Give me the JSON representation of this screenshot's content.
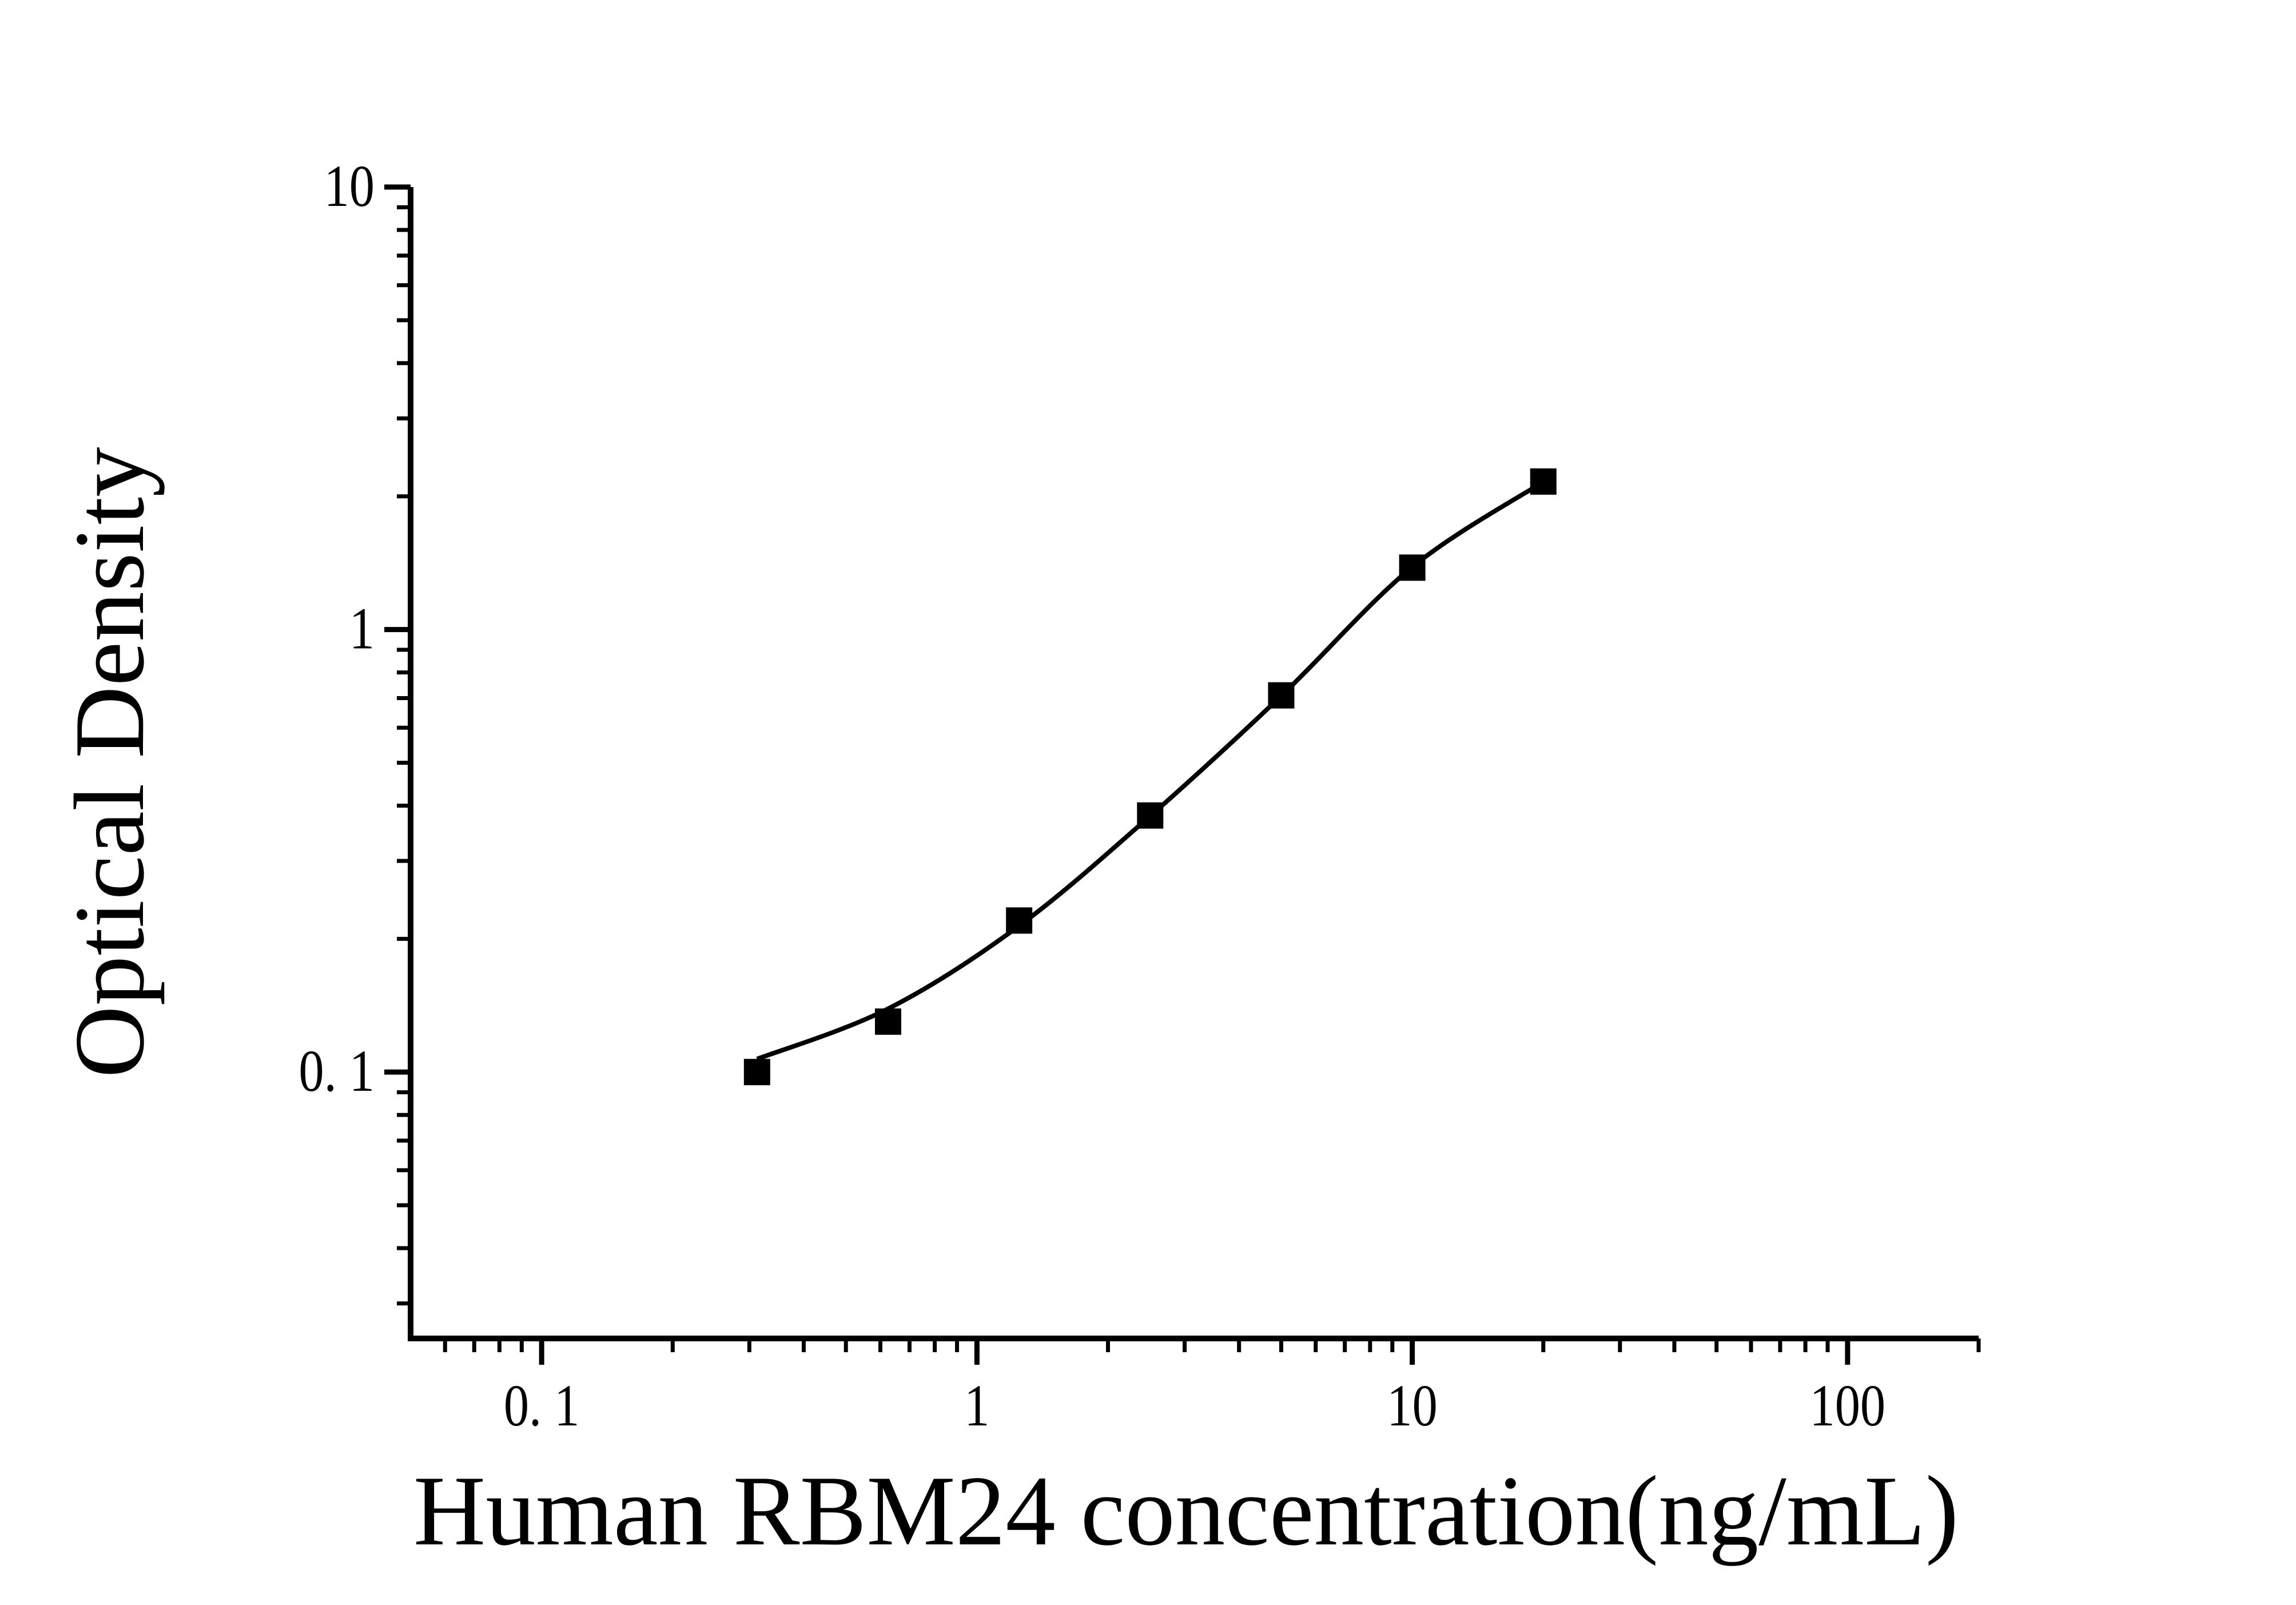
{
  "figure": {
    "background": "#ffffff",
    "ink_color": "#000000"
  },
  "chart_data": {
    "type": "scatter",
    "title": "",
    "xlabel": "Human RBM24 concentration(ng/mL)",
    "ylabel": "Optical Density",
    "x_scale": "log",
    "y_scale": "log",
    "xlim": [
      0.05,
      200
    ],
    "ylim": [
      0.025,
      10
    ],
    "grid": false,
    "legend": "none",
    "x_major_ticks": [
      {
        "value": 0.1,
        "label": "0. 1"
      },
      {
        "value": 1,
        "label": "1"
      },
      {
        "value": 10,
        "label": "10"
      },
      {
        "value": 100,
        "label": "100"
      }
    ],
    "y_major_ticks": [
      {
        "value": 0.1,
        "label": "0. 1"
      },
      {
        "value": 1,
        "label": "1"
      },
      {
        "value": 10,
        "label": "10"
      }
    ],
    "minor_ticks": "log-2-to-9-per-decade",
    "series": [
      {
        "name": "Standard curve points",
        "marker": "filled-square",
        "color": "#000000",
        "x": [
          0.3125,
          0.625,
          1.25,
          2.5,
          5,
          10,
          20
        ],
        "y": [
          0.1,
          0.13,
          0.22,
          0.38,
          0.71,
          1.38,
          2.16
        ]
      }
    ],
    "fit_curve": {
      "name": "4PL fit line",
      "color": "#000000",
      "x": [
        0.3125,
        0.625,
        1.25,
        2.5,
        5,
        10,
        20
      ],
      "y": [
        0.107,
        0.139,
        0.214,
        0.379,
        0.708,
        1.384,
        2.157
      ]
    }
  }
}
